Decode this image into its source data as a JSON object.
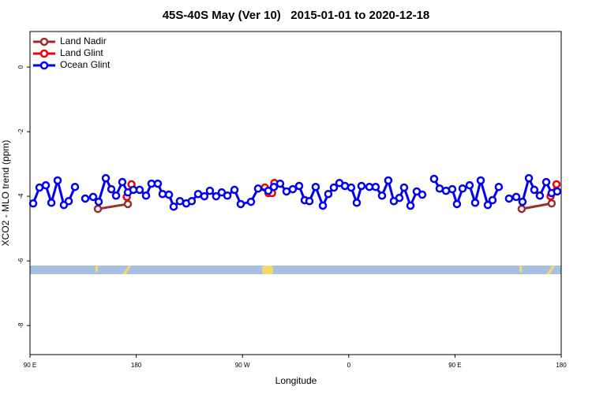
{
  "chart_data": {
    "type": "line",
    "title": "45S-40S May (Ver 10)   2015-01-01 to 2020-12-18",
    "x_label": "Longitude",
    "y_label": "XCO2 - MLO trend (ppm)",
    "xlim": [
      90,
      540
    ],
    "ylim": [
      -8.9,
      1.1
    ],
    "xticks": [
      {
        "value": 90,
        "label": "90 E"
      },
      {
        "value": 180,
        "label": "180"
      },
      {
        "value": 270,
        "label": "90 W"
      },
      {
        "value": 360,
        "label": "0"
      },
      {
        "value": 450,
        "label": "90 E"
      },
      {
        "value": 540,
        "label": "180"
      }
    ],
    "yticks": [
      0,
      -2,
      -4,
      -6,
      -8
    ],
    "legend": "top-left",
    "series": [
      {
        "name": "Land Nadir",
        "color": "#9b2d2d",
        "x": [
          147.5,
          172.9,
          null,
          506.5,
          531.9
        ],
        "values": [
          -4.39,
          -4.24,
          null,
          -4.39,
          -4.22
        ]
      },
      {
        "name": "Land Glint",
        "color": "#ee0000",
        "x": [
          172,
          176,
          null,
          289,
          292,
          295,
          297,
          null,
          531,
          536
        ],
        "values": [
          -4.02,
          -3.63,
          null,
          -3.73,
          -3.9,
          -3.9,
          -3.59,
          null,
          -4.0,
          -3.63
        ]
      },
      {
        "name": "Ocean Glint",
        "color": "#0000ee",
        "x": [
          92.7,
          98.0,
          103.4,
          108.1,
          113.4,
          118.7,
          122.8,
          128.1,
          null,
          136.8,
          143.5,
          148.2,
          154.2,
          158.9,
          162.9,
          168.2,
          172.9,
          177.6,
          182.9,
          188.3,
          192.9,
          198.3,
          202.3,
          207.7,
          211.7,
          217.0,
          222.4,
          227.0,
          232.4,
          237.7,
          242.4,
          247.7,
          252.4,
          257.2,
          263.2,
          268.5,
          277.2,
          283.2,
          291.9,
          296.6,
          301.9,
          307.3,
          312.6,
          318.0,
          322.7,
          326.7,
          332.0,
          338.1,
          342.7,
          347.4,
          352.1,
          356.8,
          362.1,
          366.8,
          370.8,
          377.5,
          382.8,
          388.2,
          393.5,
          398.2,
          402.9,
          406.9,
          412.3,
          417.6,
          422.3,
          null,
          432.3,
          437.0,
          442.4,
          447.7,
          451.7,
          456.4,
          462.4,
          467.1,
          471.8,
          477.8,
          481.8,
          487.1,
          null,
          495.8,
          501.9,
          507.2,
          512.6,
          517.2,
          521.9,
          527.3,
          531.9,
          536.6
        ],
        "values": [
          -4.22,
          -3.73,
          -3.66,
          -4.2,
          -3.51,
          -4.27,
          -4.15,
          -3.71,
          null,
          -4.07,
          -4.02,
          -4.17,
          -3.44,
          -3.78,
          -3.98,
          -3.56,
          -3.88,
          -3.8,
          -3.8,
          -3.98,
          -3.61,
          -3.61,
          -3.93,
          -3.95,
          -4.32,
          -4.15,
          -4.22,
          -4.15,
          -3.93,
          -4.0,
          -3.83,
          -4.0,
          -3.88,
          -3.98,
          -3.8,
          -4.24,
          -4.17,
          -3.76,
          -3.83,
          -3.71,
          -3.61,
          -3.85,
          -3.78,
          -3.68,
          -4.12,
          -4.15,
          -3.71,
          -4.29,
          -3.93,
          -3.73,
          -3.59,
          -3.68,
          -3.73,
          -4.2,
          -3.68,
          -3.71,
          -3.71,
          -3.98,
          -3.51,
          -4.15,
          -4.05,
          -3.73,
          -4.29,
          -3.85,
          -3.95,
          null,
          -3.46,
          -3.76,
          -3.83,
          -3.78,
          -4.24,
          -3.76,
          -3.66,
          -4.2,
          -3.51,
          -4.27,
          -4.12,
          -3.71,
          null,
          -4.07,
          -4.02,
          -4.17,
          -3.44,
          -3.8,
          -3.98,
          -3.56,
          -3.9,
          -3.85
        ]
      }
    ]
  }
}
